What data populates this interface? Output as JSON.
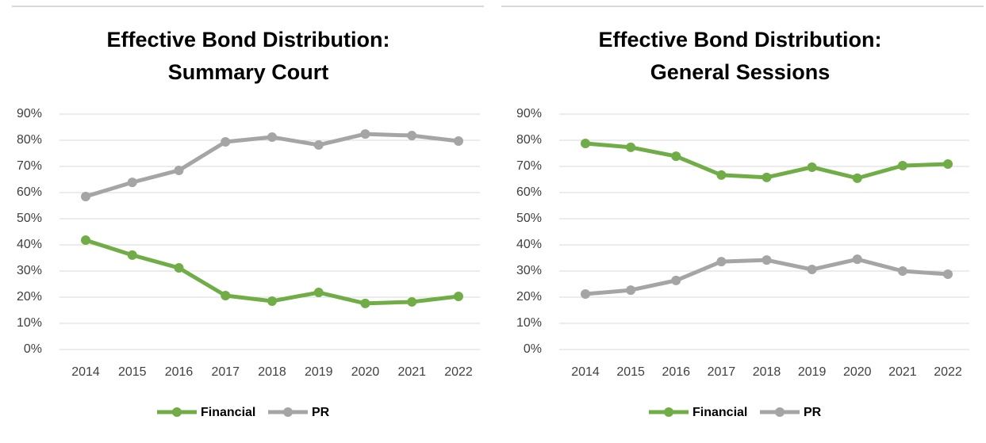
{
  "chart_data": [
    {
      "type": "line",
      "title": [
        "Effective Bond Distribution:",
        "Summary Court"
      ],
      "x": [
        "2014",
        "2015",
        "2016",
        "2017",
        "2018",
        "2019",
        "2020",
        "2021",
        "2022"
      ],
      "series": [
        {
          "name": "Financial",
          "color": "#70ad47",
          "values": [
            41.8,
            36.1,
            31.2,
            20.6,
            18.5,
            21.8,
            17.6,
            18.2,
            20.3
          ]
        },
        {
          "name": "PR",
          "color": "#a5a5a5",
          "values": [
            58.5,
            63.9,
            68.5,
            79.4,
            81.2,
            78.2,
            82.4,
            81.8,
            79.7
          ]
        }
      ],
      "ylim": [
        0,
        90
      ],
      "yticks": [
        {
          "value": 0,
          "label": "0%"
        },
        {
          "value": 10,
          "label": "10%"
        },
        {
          "value": 20,
          "label": "20%"
        },
        {
          "value": 30,
          "label": "30%"
        },
        {
          "value": 40,
          "label": "40%"
        },
        {
          "value": 50,
          "label": "50%"
        },
        {
          "value": 60,
          "label": "60%"
        },
        {
          "value": 70,
          "label": "70%"
        },
        {
          "value": 80,
          "label": "80%"
        },
        {
          "value": 90,
          "label": "90%"
        }
      ],
      "grid": true,
      "legend": "bottom"
    },
    {
      "type": "line",
      "title": [
        "Effective Bond Distribution:",
        "General Sessions"
      ],
      "x": [
        "2014",
        "2015",
        "2016",
        "2017",
        "2018",
        "2019",
        "2020",
        "2021",
        "2022"
      ],
      "series": [
        {
          "name": "Financial",
          "color": "#70ad47",
          "values": [
            78.8,
            77.3,
            73.9,
            66.7,
            65.8,
            69.7,
            65.5,
            70.3,
            70.9
          ]
        },
        {
          "name": "PR",
          "color": "#a5a5a5",
          "values": [
            21.2,
            22.7,
            26.4,
            33.6,
            34.2,
            30.6,
            34.5,
            30.0,
            28.8
          ]
        }
      ],
      "ylim": [
        0,
        90
      ],
      "yticks": [
        {
          "value": 0,
          "label": "0%"
        },
        {
          "value": 10,
          "label": "10%"
        },
        {
          "value": 20,
          "label": "20%"
        },
        {
          "value": 30,
          "label": "30%"
        },
        {
          "value": 40,
          "label": "40%"
        },
        {
          "value": 50,
          "label": "50%"
        },
        {
          "value": 60,
          "label": "60%"
        },
        {
          "value": 70,
          "label": "70%"
        },
        {
          "value": 80,
          "label": "80%"
        },
        {
          "value": 90,
          "label": "90%"
        }
      ],
      "grid": true,
      "legend": "bottom"
    }
  ]
}
